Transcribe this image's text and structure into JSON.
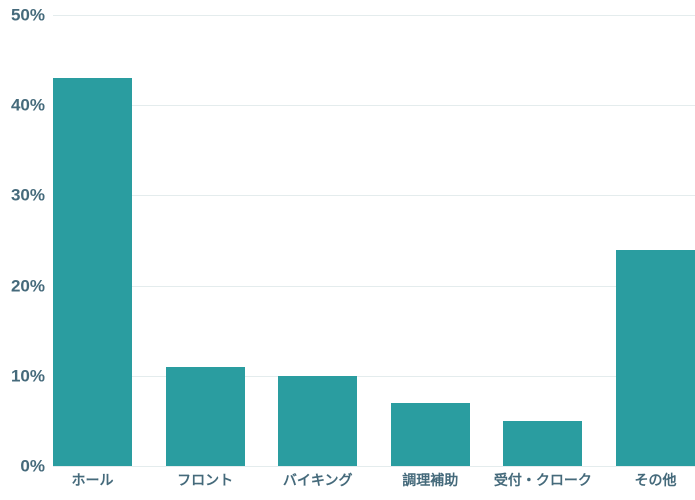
{
  "chart_data": {
    "type": "bar",
    "title": "",
    "categories": [
      "ホール",
      "フロント",
      "バイキング",
      "調理補助",
      "受付・クローク",
      "その他"
    ],
    "values": [
      43,
      11,
      10,
      7,
      5,
      24
    ],
    "unit": "%",
    "xlabel": "",
    "ylabel": "",
    "ylim": [
      0,
      50
    ],
    "yticks": [
      0,
      10,
      20,
      30,
      40,
      50
    ],
    "ytick_labels": [
      "0%",
      "10%",
      "20%",
      "30%",
      "40%",
      "50%"
    ],
    "grid": "horizontal",
    "legend": "none",
    "colors": {
      "bar": "#2a9da0",
      "axis_label": "#456a7b",
      "gridline": "#e4eced",
      "background": "#ffffff"
    }
  }
}
